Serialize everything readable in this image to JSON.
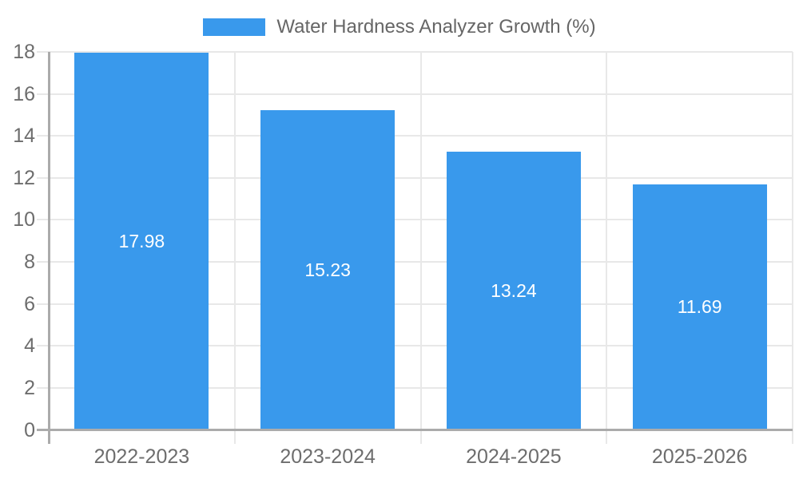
{
  "legend": {
    "label": "Water Hardness Analyzer Growth (%)"
  },
  "chart_data": {
    "type": "bar",
    "title": "Water Hardness Analyzer Growth (%)",
    "categories": [
      "2022-2023",
      "2023-2024",
      "2024-2025",
      "2025-2026"
    ],
    "values": [
      17.98,
      15.23,
      13.24,
      11.69
    ],
    "value_labels": [
      "17.98",
      "15.23",
      "13.24",
      "11.69"
    ],
    "xlabel": "",
    "ylabel": "",
    "ylim": [
      0,
      18
    ],
    "yticks": [
      0,
      2,
      4,
      6,
      8,
      10,
      12,
      14,
      16,
      18
    ],
    "grid": true,
    "legend_position": "top",
    "colors": {
      "bar": "#3999EC",
      "grid": "#e8e8e8",
      "axis": "#ababab",
      "tick_label": "#6d6d6d",
      "legend_text": "#666666",
      "value_label": "#ffffff",
      "background": "#ffffff"
    }
  }
}
